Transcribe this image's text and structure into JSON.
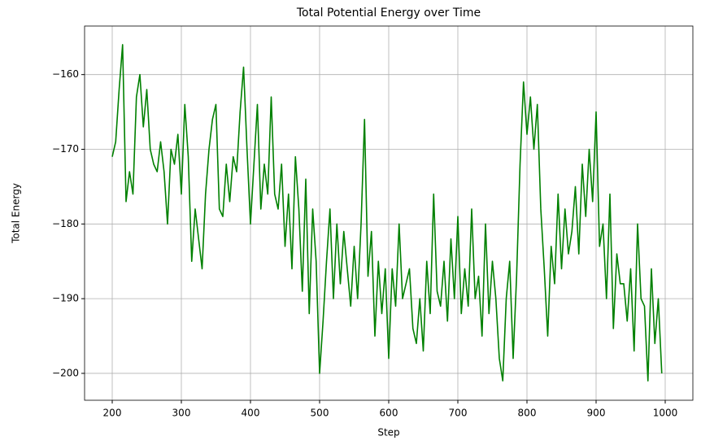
{
  "chart_data": {
    "type": "line",
    "title": "Total Potential Energy over Time",
    "x_label": "Step",
    "y_label": "Total Energy",
    "x": [
      200,
      205,
      210,
      215,
      220,
      225,
      230,
      235,
      240,
      245,
      250,
      255,
      260,
      265,
      270,
      275,
      280,
      285,
      290,
      295,
      300,
      305,
      310,
      315,
      320,
      325,
      330,
      335,
      340,
      345,
      350,
      355,
      360,
      365,
      370,
      375,
      380,
      385,
      390,
      395,
      400,
      405,
      410,
      415,
      420,
      425,
      430,
      435,
      440,
      445,
      450,
      455,
      460,
      465,
      470,
      475,
      480,
      485,
      490,
      495,
      500,
      505,
      510,
      515,
      520,
      525,
      530,
      535,
      540,
      545,
      550,
      555,
      560,
      565,
      570,
      575,
      580,
      585,
      590,
      595,
      600,
      605,
      610,
      615,
      620,
      625,
      630,
      635,
      640,
      645,
      650,
      655,
      660,
      665,
      670,
      675,
      680,
      685,
      690,
      695,
      700,
      705,
      710,
      715,
      720,
      725,
      730,
      735,
      740,
      745,
      750,
      755,
      760,
      765,
      770,
      775,
      780,
      785,
      790,
      795,
      800,
      805,
      810,
      815,
      820,
      825,
      830,
      835,
      840,
      845,
      850,
      855,
      860,
      865,
      870,
      875,
      880,
      885,
      890,
      895,
      900,
      905,
      910,
      915,
      920,
      925,
      930,
      935,
      940,
      945,
      950,
      955,
      960,
      965,
      970,
      975,
      980,
      985,
      990,
      995
    ],
    "series": [
      {
        "name": "Total Energy",
        "color": "#008000",
        "values": [
          -171,
          -169,
          -162,
          -156,
          -177,
          -173,
          -176,
          -163,
          -160,
          -167,
          -162,
          -170,
          -172,
          -173,
          -169,
          -173,
          -180,
          -170,
          -172,
          -168,
          -176,
          -164,
          -171,
          -185,
          -178,
          -182,
          -186,
          -176,
          -170,
          -166,
          -164,
          -178,
          -179,
          -172,
          -177,
          -171,
          -173,
          -165,
          -159,
          -170,
          -180,
          -172,
          -164,
          -178,
          -172,
          -176,
          -163,
          -176,
          -178,
          -172,
          -183,
          -176,
          -186,
          -171,
          -178,
          -189,
          -174,
          -192,
          -178,
          -185,
          -200,
          -193,
          -185,
          -178,
          -190,
          -180,
          -188,
          -181,
          -186,
          -191,
          -183,
          -190,
          -180,
          -166,
          -187,
          -181,
          -195,
          -185,
          -192,
          -186,
          -198,
          -186,
          -191,
          -180,
          -190,
          -188,
          -186,
          -194,
          -196,
          -190,
          -197,
          -185,
          -192,
          -176,
          -189,
          -191,
          -185,
          -193,
          -182,
          -190,
          -179,
          -192,
          -186,
          -191,
          -178,
          -190,
          -187,
          -195,
          -180,
          -192,
          -185,
          -190,
          -198,
          -201,
          -190,
          -185,
          -198,
          -187,
          -172,
          -161,
          -168,
          -163,
          -170,
          -164,
          -178,
          -186,
          -195,
          -183,
          -188,
          -176,
          -186,
          -178,
          -184,
          -181,
          -175,
          -184,
          -172,
          -179,
          -170,
          -177,
          -165,
          -183,
          -180,
          -190,
          -176,
          -194,
          -184,
          -188,
          -188,
          -193,
          -186,
          -197,
          -180,
          -190,
          -191,
          -201,
          -186,
          -196,
          -190,
          -200
        ]
      }
    ],
    "xlim": [
      160,
      1040
    ],
    "xticks": [
      200,
      300,
      400,
      500,
      600,
      700,
      800,
      900,
      1000
    ],
    "ylim": [
      -203.6,
      -153.5
    ],
    "yticks": [
      {
        "value": -200,
        "label": "−200"
      },
      {
        "value": -190,
        "label": "−190"
      },
      {
        "value": -180,
        "label": "−180"
      },
      {
        "value": -170,
        "label": "−170"
      },
      {
        "value": -160,
        "label": "−160"
      }
    ],
    "grid": true
  }
}
